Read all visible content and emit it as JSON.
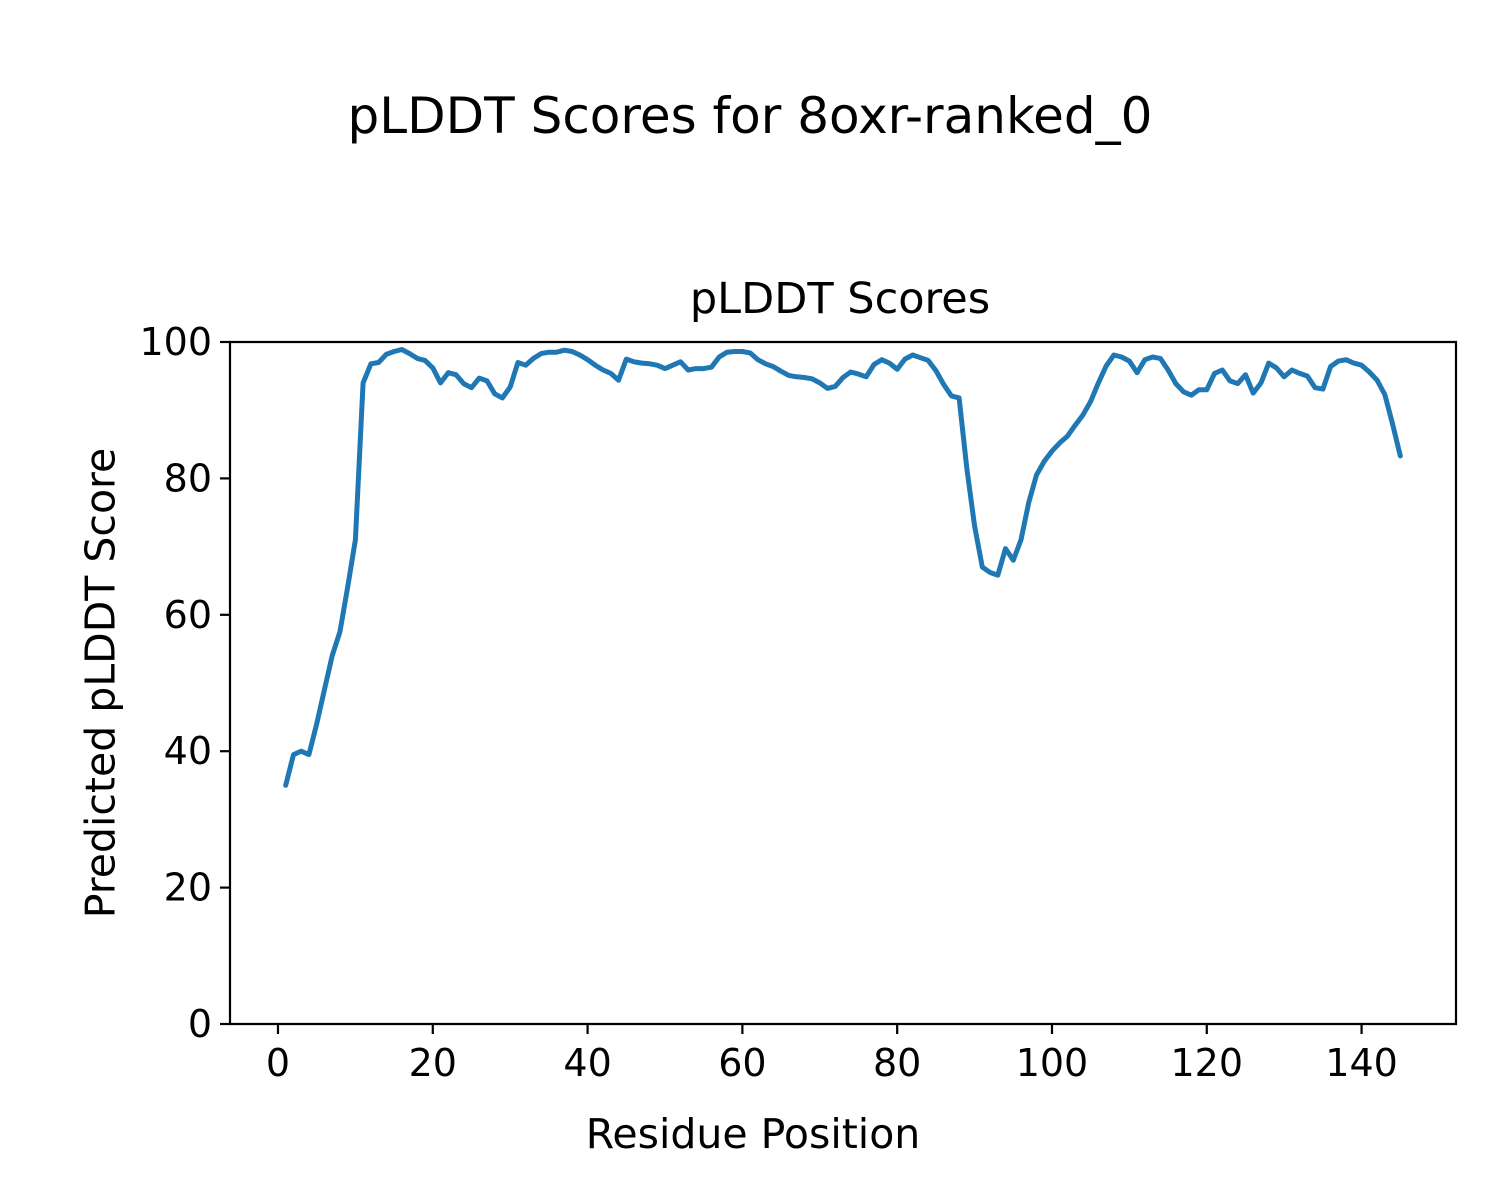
{
  "figure": {
    "title": "pLDDT Scores for 8oxr-ranked_0"
  },
  "chart_data": {
    "type": "line",
    "title": "pLDDT Scores",
    "xlabel": "Residue Position",
    "ylabel": "Predicted pLDDT Score",
    "grid": false,
    "legend": "none",
    "xlim": [
      -6.2,
      152.2
    ],
    "ylim": [
      0,
      100
    ],
    "xticks": [
      0,
      20,
      40,
      60,
      80,
      100,
      120,
      140
    ],
    "yticks": [
      0,
      20,
      40,
      60,
      80,
      100
    ],
    "series": [
      {
        "name": "pLDDT",
        "color": "#1f77b4",
        "line_width": 5,
        "x_start": 1,
        "x_step": 1,
        "values": [
          35.0,
          39.5,
          40.0,
          39.5,
          44.0,
          49.0,
          54.0,
          57.5,
          64.0,
          71.0,
          94.0,
          96.8,
          97.0,
          98.2,
          98.6,
          98.9,
          98.3,
          97.6,
          97.3,
          96.2,
          94.0,
          95.5,
          95.2,
          93.9,
          93.3,
          94.7,
          94.3,
          92.4,
          91.8,
          93.4,
          97.0,
          96.6,
          97.6,
          98.3,
          98.5,
          98.5,
          98.8,
          98.6,
          98.1,
          97.4,
          96.6,
          95.9,
          95.4,
          94.4,
          97.5,
          97.1,
          96.9,
          96.8,
          96.6,
          96.1,
          96.6,
          97.1,
          95.9,
          96.1,
          96.1,
          96.3,
          97.8,
          98.5,
          98.6,
          98.6,
          98.4,
          97.4,
          96.8,
          96.4,
          95.7,
          95.1,
          94.9,
          94.8,
          94.6,
          94.0,
          93.2,
          93.5,
          94.8,
          95.6,
          95.3,
          94.9,
          96.7,
          97.4,
          96.9,
          96.0,
          97.5,
          98.1,
          97.7,
          97.3,
          95.8,
          93.8,
          92.1,
          91.8,
          81.5,
          73.0,
          67.0,
          66.2,
          65.8,
          69.7,
          68.0,
          71.0,
          76.5,
          80.5,
          82.5,
          84.0,
          85.2,
          86.2,
          87.8,
          89.3,
          91.3,
          94.0,
          96.5,
          98.1,
          97.8,
          97.2,
          95.5,
          97.4,
          97.8,
          97.6,
          95.9,
          93.9,
          92.7,
          92.2,
          93.0,
          93.0,
          95.4,
          95.9,
          94.3,
          93.9,
          95.2,
          92.5,
          94.0,
          96.9,
          96.2,
          94.9,
          95.9,
          95.4,
          95.0,
          93.3,
          93.1,
          96.4,
          97.2,
          97.4,
          96.9,
          96.6,
          95.6,
          94.4,
          92.3,
          88.0,
          83.3
        ]
      }
    ]
  }
}
